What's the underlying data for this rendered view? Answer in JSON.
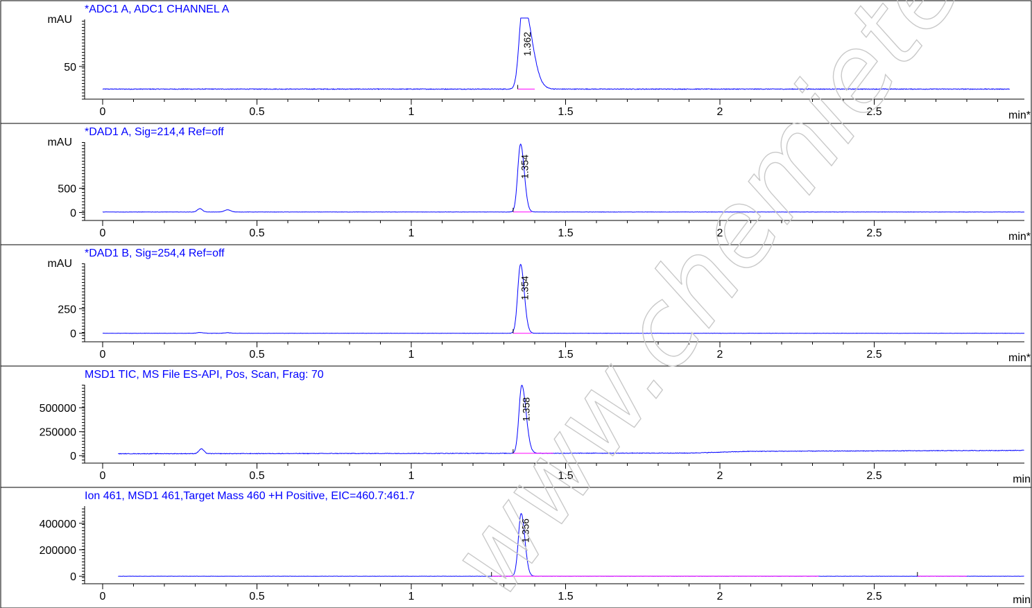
{
  "watermark": "www.chemietek.com",
  "colors": {
    "trace": "#0000ff",
    "integration_baseline": "#ff00ff",
    "title": "#0000ff",
    "axis": "#000000"
  },
  "chart_data": [
    {
      "type": "line",
      "title": "*ADC1 A, ADC1 CHANNEL A",
      "ylabel": "mAU",
      "xlabel": "min*",
      "xlim": [
        0,
        3.0
      ],
      "x_ticks": [
        "0",
        "0.5",
        "1",
        "1.5",
        "2",
        "2.5"
      ],
      "y_ticks": [
        "50"
      ],
      "ylim": [
        20,
        102
      ],
      "baseline": 25,
      "x_range": [
        0,
        2.94
      ],
      "noise": 0.4,
      "peaks": [
        {
          "x": 1.362,
          "height": 95,
          "width": 0.012,
          "tail": 0.028,
          "label": "1.362"
        }
      ],
      "integration": [
        [
          1.345,
          1.4
        ]
      ]
    },
    {
      "type": "line",
      "title": "*DAD1 A, Sig=214,4 Ref=off",
      "ylabel": "mAU",
      "xlabel": "min*",
      "xlim": [
        0,
        3.0
      ],
      "x_ticks": [
        "0",
        "0.5",
        "1",
        "1.5",
        "2",
        "2.5"
      ],
      "y_ticks": [
        "0",
        "500"
      ],
      "ylim": [
        -50,
        1450
      ],
      "baseline": 10,
      "x_range": [
        0,
        3.0
      ],
      "noise": 3,
      "peaks": [
        {
          "x": 0.315,
          "height": 70,
          "width": 0.008
        },
        {
          "x": 0.405,
          "height": 45,
          "width": 0.01
        },
        {
          "x": 1.354,
          "height": 1400,
          "width": 0.009,
          "tail": 0.012,
          "label": "1.354"
        }
      ],
      "integration": [
        [
          1.33,
          1.39
        ]
      ]
    },
    {
      "type": "line",
      "title": "*DAD1 B, Sig=254,4 Ref=off",
      "ylabel": "mAU",
      "xlabel": "min*",
      "xlim": [
        0,
        3.0
      ],
      "x_ticks": [
        "0",
        "0.5",
        "1",
        "1.5",
        "2",
        "2.5"
      ],
      "y_ticks": [
        "0",
        "250"
      ],
      "ylim": [
        -30,
        710
      ],
      "baseline": 0,
      "x_range": [
        0,
        3.0
      ],
      "noise": 1.5,
      "peaks": [
        {
          "x": 0.315,
          "height": 8,
          "width": 0.01
        },
        {
          "x": 0.405,
          "height": 6,
          "width": 0.01
        },
        {
          "x": 1.354,
          "height": 700,
          "width": 0.009,
          "tail": 0.012,
          "label": "1.354"
        }
      ],
      "integration": [
        [
          1.33,
          1.39
        ]
      ]
    },
    {
      "type": "line",
      "title": "MSD1 TIC, MS File     ES-API, Pos, Scan, Frag: 70",
      "ylabel": "",
      "xlabel": "min",
      "xlim": [
        0,
        3.0
      ],
      "x_ticks": [
        "0",
        "0.5",
        "1",
        "1.5",
        "2",
        "2.5"
      ],
      "y_ticks": [
        "0",
        "250000",
        "500000"
      ],
      "ylim": [
        -20000,
        740000
      ],
      "baseline": 20000,
      "x_range": [
        0.05,
        3.0
      ],
      "noise": 3000,
      "drift": [
        [
          0.05,
          20000
        ],
        [
          1.5,
          25000
        ],
        [
          1.9,
          27000
        ],
        [
          2.1,
          45000
        ],
        [
          3.0,
          55000
        ]
      ],
      "peaks": [
        {
          "x": 0.32,
          "height": 50000,
          "width": 0.008
        },
        {
          "x": 1.358,
          "height": 710000,
          "width": 0.009,
          "tail": 0.014,
          "label": "1.358"
        }
      ],
      "integration": [
        [
          1.33,
          1.46
        ]
      ]
    },
    {
      "type": "line",
      "title": "Ion 461, MSD1 461,Target Mass 460 +H Positive, EIC=460.7:461.7",
      "ylabel": "",
      "xlabel": "min",
      "xlim": [
        0,
        3.0
      ],
      "x_ticks": [
        "0",
        "0.5",
        "1",
        "1.5",
        "2",
        "2.5"
      ],
      "y_ticks": [
        "0",
        "200000",
        "400000"
      ],
      "ylim": [
        -15000,
        530000
      ],
      "baseline": 0,
      "x_range": [
        0.05,
        3.0
      ],
      "noise": 800,
      "peaks": [
        {
          "x": 1.356,
          "height": 475000,
          "width": 0.009,
          "tail": 0.012,
          "label": "1.356"
        }
      ],
      "integration": [
        [
          1.26,
          2.32
        ],
        [
          2.64,
          2.8
        ]
      ]
    }
  ]
}
